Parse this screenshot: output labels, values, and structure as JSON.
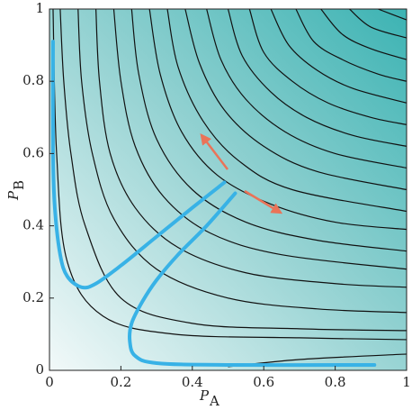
{
  "chart_data": {
    "type": "line",
    "x_label": {
      "text": "P",
      "subscript": "A"
    },
    "y_label": {
      "text": "P",
      "subscript": "B"
    },
    "xlim": [
      0,
      1
    ],
    "ylim": [
      0,
      1
    ],
    "xticks": [
      0,
      0.2,
      0.4,
      0.6,
      0.8,
      1
    ],
    "yticks": [
      0,
      0.2,
      0.4,
      0.6,
      0.8,
      1
    ],
    "contour_color": "#111111",
    "contours": [
      {
        "x": [
          0.01,
          0.02,
          0.05,
          0.15,
          0.35,
          0.7,
          1
        ],
        "y": [
          1,
          0.6,
          0.3,
          0.15,
          0.1,
          0.09,
          0.085
        ]
      },
      {
        "x": [
          0.03,
          0.04,
          0.06,
          0.1,
          0.2,
          0.4,
          0.7,
          1
        ],
        "y": [
          1,
          0.8,
          0.6,
          0.4,
          0.2,
          0.13,
          0.115,
          0.11
        ]
      },
      {
        "x": [
          0.08,
          0.09,
          0.12,
          0.18,
          0.3,
          0.5,
          0.75,
          1
        ],
        "y": [
          1,
          0.8,
          0.6,
          0.42,
          0.28,
          0.2,
          0.17,
          0.16
        ]
      },
      {
        "x": [
          0.13,
          0.14,
          0.17,
          0.24,
          0.36,
          0.55,
          0.8,
          1
        ],
        "y": [
          1,
          0.8,
          0.6,
          0.45,
          0.34,
          0.27,
          0.24,
          0.23
        ]
      },
      {
        "x": [
          0.18,
          0.2,
          0.24,
          0.32,
          0.45,
          0.65,
          1
        ],
        "y": [
          1,
          0.8,
          0.62,
          0.48,
          0.38,
          0.32,
          0.28
        ]
      },
      {
        "x": [
          0.23,
          0.25,
          0.3,
          0.4,
          0.55,
          0.75,
          1
        ],
        "y": [
          1,
          0.82,
          0.64,
          0.5,
          0.41,
          0.36,
          0.33
        ]
      },
      {
        "x": [
          0.28,
          0.31,
          0.37,
          0.47,
          0.62,
          0.8,
          1
        ],
        "y": [
          1,
          0.82,
          0.66,
          0.54,
          0.46,
          0.41,
          0.39
        ]
      },
      {
        "x": [
          0.33,
          0.36,
          0.43,
          0.53,
          0.68,
          1
        ],
        "y": [
          1,
          0.84,
          0.69,
          0.58,
          0.5,
          0.44
        ]
      },
      {
        "x": [
          0.38,
          0.42,
          0.49,
          0.6,
          0.75,
          1
        ],
        "y": [
          1,
          0.85,
          0.72,
          0.62,
          0.55,
          0.5
        ]
      },
      {
        "x": [
          0.44,
          0.48,
          0.55,
          0.66,
          0.8,
          1
        ],
        "y": [
          1,
          0.86,
          0.75,
          0.66,
          0.6,
          0.56
        ]
      },
      {
        "x": [
          0.5,
          0.54,
          0.62,
          0.72,
          0.85,
          1
        ],
        "y": [
          1,
          0.87,
          0.77,
          0.7,
          0.65,
          0.62
        ]
      },
      {
        "x": [
          0.56,
          0.6,
          0.68,
          0.78,
          0.9,
          1
        ],
        "y": [
          1,
          0.88,
          0.8,
          0.74,
          0.7,
          0.68
        ]
      },
      {
        "x": [
          0.62,
          0.67,
          0.75,
          0.85,
          1
        ],
        "y": [
          1,
          0.9,
          0.83,
          0.78,
          0.74
        ]
      },
      {
        "x": [
          0.69,
          0.74,
          0.82,
          0.92,
          1
        ],
        "y": [
          1,
          0.91,
          0.86,
          0.82,
          0.8
        ]
      },
      {
        "x": [
          0.76,
          0.82,
          0.9,
          1
        ],
        "y": [
          1,
          0.93,
          0.89,
          0.86
        ]
      },
      {
        "x": [
          0.84,
          0.9,
          1
        ],
        "y": [
          1,
          0.95,
          0.92
        ]
      },
      {
        "x": [
          0.92,
          1
        ],
        "y": [
          1,
          0.97
        ]
      },
      {
        "x": [
          0.5,
          0.7,
          1
        ],
        "y": [
          0.01,
          0.03,
          0.045
        ]
      }
    ],
    "series": [
      {
        "color": "#38b2e6",
        "x": [
          0.01,
          0.01,
          0.015,
          0.03,
          0.05,
          0.09,
          0.13,
          0.2,
          0.3,
          0.4,
          0.49
        ],
        "values": [
          0.91,
          0.6,
          0.45,
          0.32,
          0.26,
          0.23,
          0.24,
          0.29,
          0.37,
          0.45,
          0.52
        ]
      },
      {
        "color": "#38b2e6",
        "x": [
          0.91,
          0.5,
          0.3,
          0.24,
          0.225,
          0.23,
          0.26,
          0.3,
          0.36,
          0.44,
          0.52
        ],
        "values": [
          0.015,
          0.015,
          0.02,
          0.04,
          0.08,
          0.13,
          0.19,
          0.25,
          0.32,
          0.4,
          0.49
        ]
      }
    ]
  }
}
